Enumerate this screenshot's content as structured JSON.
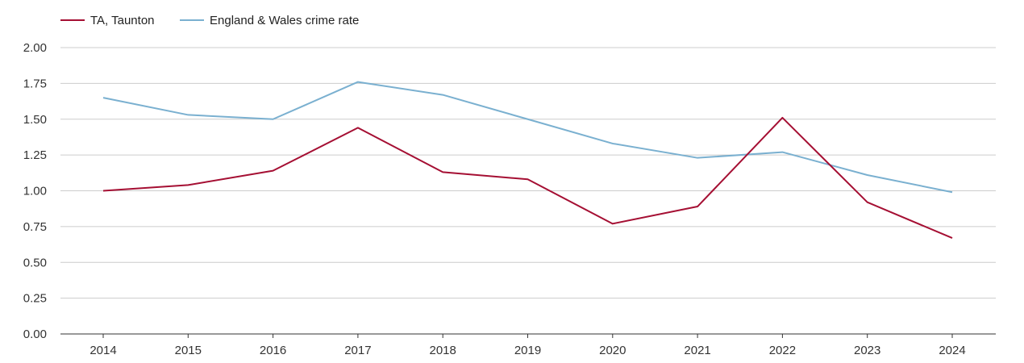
{
  "chart_data": {
    "type": "line",
    "title": "",
    "xlabel": "",
    "ylabel": "",
    "x": [
      2014,
      2015,
      2016,
      2017,
      2018,
      2019,
      2020,
      2021,
      2022,
      2023,
      2024
    ],
    "x_tick_labels": [
      "2014",
      "2015",
      "2016",
      "2017",
      "2018",
      "2019",
      "2020",
      "2021",
      "2022",
      "2023",
      "2024"
    ],
    "y_tick_labels": [
      "0.00",
      "0.25",
      "0.50",
      "0.75",
      "1.00",
      "1.25",
      "1.50",
      "1.75",
      "2.00"
    ],
    "ylim": [
      0,
      2
    ],
    "grid": true,
    "legend_position": "top-left",
    "series": [
      {
        "name": "TA, Taunton",
        "color": "#a50f33",
        "values": [
          1.0,
          1.04,
          1.14,
          1.44,
          1.13,
          1.08,
          0.77,
          0.89,
          1.51,
          0.92,
          0.67
        ]
      },
      {
        "name": "England & Wales crime rate",
        "color": "#7ab0d0",
        "values": [
          1.65,
          1.53,
          1.5,
          1.76,
          1.67,
          1.5,
          1.33,
          1.23,
          1.27,
          1.11,
          0.99
        ]
      }
    ]
  }
}
